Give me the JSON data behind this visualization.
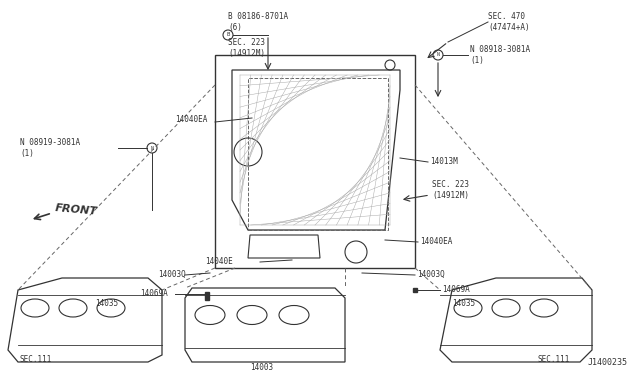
{
  "bg_color": "#ffffff",
  "line_color": "#333333",
  "diagram_id": "J1400235",
  "labels": {
    "top_bolt_left": "B 08186-8701A\n(6)",
    "top_sec223": "SEC. 223\n(14912M)",
    "sec470": "SEC. 470\n(47474+A)",
    "top_bolt_right": "N 08918-3081A\n(1)",
    "left_bolt": "N 08919-3081A\n(1)",
    "label_14040EA_top": "14040EA",
    "label_14013M": "14013M",
    "sec223_right": "SEC. 223\n(14912M)",
    "label_14040EA_bot": "14040EA",
    "label_14040E": "14040E",
    "label_14003Q_left": "14003Q",
    "label_14003Q_right": "14003Q",
    "label_14069A_left": "14069A",
    "label_14069A_right": "14069A",
    "label_14035_left": "14035",
    "label_14035_right": "14035",
    "label_14003_bot": "14003",
    "sec111_left": "SEC.111",
    "sec111_right": "SEC.111",
    "front": "FRONT"
  }
}
